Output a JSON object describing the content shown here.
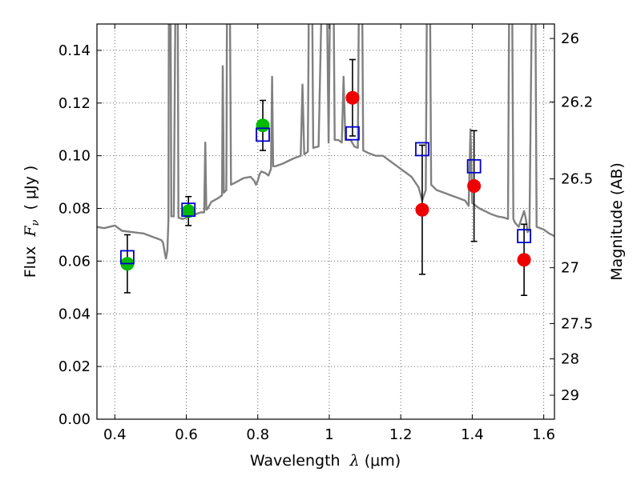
{
  "chart_data": {
    "type": "scatter",
    "title": "",
    "xlabel": {
      "prefix": "Wavelength  ",
      "symbol": "λ",
      "unit": " (μm)"
    },
    "ylabel": {
      "prefix": "Flux  ",
      "symbol": "F",
      "subscript": "ν",
      "unit": "  ( μJy )"
    },
    "ylabel_right": "Magnitude (AB)",
    "xlim": [
      0.35,
      1.63
    ],
    "ylim": [
      0.0,
      0.15
    ],
    "grid": true,
    "x_ticks": [
      0.4,
      0.6,
      0.8,
      1.0,
      1.2,
      1.4,
      1.6
    ],
    "x_tick_labels": [
      "0.4",
      "0.6",
      "0.8",
      "1",
      "1.2",
      "1.4",
      "1.6"
    ],
    "y_ticks": [
      0.0,
      0.02,
      0.04,
      0.06,
      0.08,
      0.1,
      0.12,
      0.14
    ],
    "y_tick_labels": [
      "0.00",
      "0.02",
      "0.04",
      "0.06",
      "0.08",
      "0.10",
      "0.12",
      "0.14"
    ],
    "right_ticks": [
      {
        "flux": 0.1445,
        "label": "26"
      },
      {
        "flux": 0.1204,
        "label": "26.2"
      },
      {
        "flux": 0.0912,
        "label": "26.5"
      },
      {
        "flux": 0.0575,
        "label": "27"
      },
      {
        "flux": 0.0363,
        "label": "27.5"
      },
      {
        "flux": 0.0229,
        "label": "28"
      },
      {
        "flux": 0.0091,
        "label": "29"
      }
    ],
    "colors": {
      "model": "#808080",
      "green": "#00bb00",
      "red": "#ee0000",
      "box": "#0000cc",
      "errorbar": "#000000",
      "grid": "#666666"
    },
    "series": [
      {
        "marker": "circle-green",
        "points": [
          {
            "x": 0.435,
            "y": 0.059,
            "err": 0.011
          },
          {
            "x": 0.606,
            "y": 0.079,
            "err": 0.0055
          },
          {
            "x": 0.814,
            "y": 0.1115,
            "err": 0.0095
          }
        ]
      },
      {
        "marker": "circle-red",
        "points": [
          {
            "x": 1.065,
            "y": 0.122,
            "err": 0.0145
          },
          {
            "x": 1.26,
            "y": 0.0795,
            "err": 0.0245
          },
          {
            "x": 1.405,
            "y": 0.0885,
            "err": 0.021
          },
          {
            "x": 1.545,
            "y": 0.0605,
            "err": 0.0135
          }
        ]
      },
      {
        "marker": "open-square-blue",
        "points": [
          {
            "x": 0.435,
            "y": 0.0615
          },
          {
            "x": 0.606,
            "y": 0.0795
          },
          {
            "x": 0.814,
            "y": 0.108
          },
          {
            "x": 1.065,
            "y": 0.1085
          },
          {
            "x": 1.26,
            "y": 0.1025
          },
          {
            "x": 1.405,
            "y": 0.096
          },
          {
            "x": 1.545,
            "y": 0.0695
          }
        ]
      }
    ],
    "model_spectrum": [
      [
        0.35,
        0.073
      ],
      [
        0.37,
        0.0725
      ],
      [
        0.4,
        0.0735
      ],
      [
        0.42,
        0.0715
      ],
      [
        0.45,
        0.071
      ],
      [
        0.48,
        0.0705
      ],
      [
        0.5,
        0.0695
      ],
      [
        0.52,
        0.0685
      ],
      [
        0.53,
        0.068
      ],
      [
        0.535,
        0.067
      ],
      [
        0.54,
        0.063
      ],
      [
        0.543,
        0.061
      ],
      [
        0.547,
        0.064
      ],
      [
        0.55,
        0.0755
      ],
      [
        0.552,
        0.2
      ],
      [
        0.555,
        0.2
      ],
      [
        0.558,
        0.077
      ],
      [
        0.565,
        0.077
      ],
      [
        0.572,
        0.2
      ],
      [
        0.575,
        0.2
      ],
      [
        0.578,
        0.0765
      ],
      [
        0.59,
        0.076
      ],
      [
        0.6,
        0.0765
      ],
      [
        0.62,
        0.0775
      ],
      [
        0.64,
        0.0785
      ],
      [
        0.65,
        0.0785
      ],
      [
        0.653,
        0.105
      ],
      [
        0.656,
        0.0795
      ],
      [
        0.66,
        0.08
      ],
      [
        0.67,
        0.0825
      ],
      [
        0.69,
        0.084
      ],
      [
        0.7,
        0.085
      ],
      [
        0.702,
        0.134
      ],
      [
        0.705,
        0.086
      ],
      [
        0.712,
        0.087
      ],
      [
        0.715,
        0.2
      ],
      [
        0.72,
        0.2
      ],
      [
        0.725,
        0.089
      ],
      [
        0.74,
        0.09
      ],
      [
        0.76,
        0.0915
      ],
      [
        0.78,
        0.092
      ],
      [
        0.79,
        0.0905
      ],
      [
        0.795,
        0.089
      ],
      [
        0.8,
        0.0905
      ],
      [
        0.805,
        0.093
      ],
      [
        0.81,
        0.094
      ],
      [
        0.82,
        0.0935
      ],
      [
        0.83,
        0.0925
      ],
      [
        0.837,
        0.095
      ],
      [
        0.84,
        0.13
      ],
      [
        0.843,
        0.096
      ],
      [
        0.85,
        0.096
      ],
      [
        0.87,
        0.097
      ],
      [
        0.9,
        0.099
      ],
      [
        0.92,
        0.1
      ],
      [
        0.925,
        0.127
      ],
      [
        0.93,
        0.1005
      ],
      [
        0.94,
        0.1015
      ],
      [
        0.945,
        0.2
      ],
      [
        0.95,
        0.2
      ],
      [
        0.955,
        0.103
      ],
      [
        0.97,
        0.1035
      ],
      [
        0.985,
        0.2
      ],
      [
        0.99,
        0.2
      ],
      [
        0.998,
        0.105
      ],
      [
        1.005,
        0.2
      ],
      [
        1.01,
        0.2
      ],
      [
        1.015,
        0.106
      ],
      [
        1.025,
        0.106
      ],
      [
        1.035,
        0.105
      ],
      [
        1.04,
        0.13
      ],
      [
        1.045,
        0.106
      ],
      [
        1.06,
        0.106
      ],
      [
        1.07,
        0.1035
      ],
      [
        1.08,
        0.103
      ],
      [
        1.085,
        0.2
      ],
      [
        1.09,
        0.2
      ],
      [
        1.095,
        0.102
      ],
      [
        1.11,
        0.101
      ],
      [
        1.13,
        0.1
      ],
      [
        1.15,
        0.1
      ],
      [
        1.17,
        0.098
      ],
      [
        1.19,
        0.096
      ],
      [
        1.21,
        0.094
      ],
      [
        1.23,
        0.092
      ],
      [
        1.25,
        0.088
      ],
      [
        1.26,
        0.083
      ],
      [
        1.27,
        0.087
      ],
      [
        1.275,
        0.2
      ],
      [
        1.28,
        0.2
      ],
      [
        1.285,
        0.089
      ],
      [
        1.3,
        0.087
      ],
      [
        1.32,
        0.086
      ],
      [
        1.34,
        0.085
      ],
      [
        1.36,
        0.084
      ],
      [
        1.38,
        0.083
      ],
      [
        1.39,
        0.081
      ],
      [
        1.395,
        0.11
      ],
      [
        1.4,
        0.082
      ],
      [
        1.42,
        0.08
      ],
      [
        1.45,
        0.078
      ],
      [
        1.47,
        0.077
      ],
      [
        1.49,
        0.0765
      ],
      [
        1.5,
        0.076
      ],
      [
        1.505,
        0.2
      ],
      [
        1.51,
        0.2
      ],
      [
        1.515,
        0.076
      ],
      [
        1.52,
        0.0745
      ],
      [
        1.53,
        0.073
      ],
      [
        1.545,
        0.079
      ],
      [
        1.55,
        0.076
      ],
      [
        1.555,
        0.071
      ],
      [
        1.56,
        0.072
      ],
      [
        1.57,
        0.2
      ],
      [
        1.575,
        0.2
      ],
      [
        1.58,
        0.073
      ],
      [
        1.6,
        0.072
      ],
      [
        1.615,
        0.0705
      ],
      [
        1.63,
        0.0695
      ]
    ]
  }
}
